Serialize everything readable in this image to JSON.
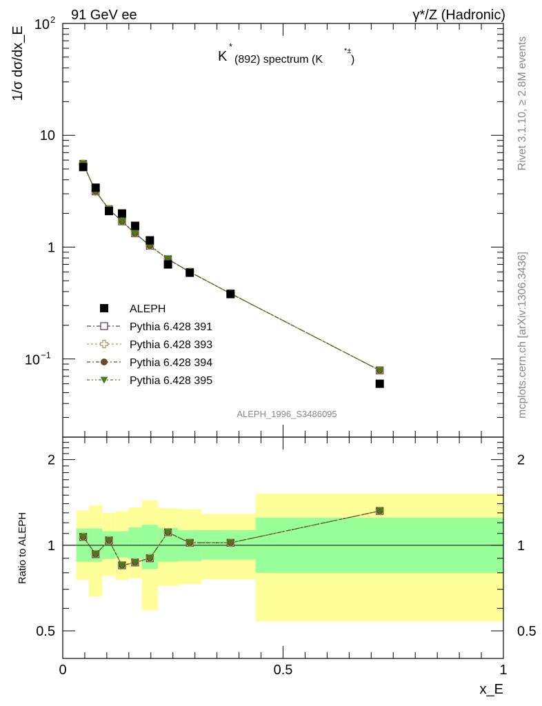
{
  "header": {
    "left": "91 GeV ee",
    "right": "γ*/Z (Hadronic)"
  },
  "side": {
    "rivet": "Rivet 3.1.10, ≥ 2.8M events",
    "mcplots": "mcplots.cern.ch [arXiv:1306.3436]"
  },
  "plot_title": {
    "K": "K",
    "star": "*",
    "rest": "(892) spectrum (K",
    "sup": "*±",
    "close": ")"
  },
  "watermark": "ALEPH_1996_S3486095",
  "chart_data": [
    {
      "type": "scatter",
      "yscale": "log",
      "ylabel": "1/σ dσ/dx_E",
      "xlim": [
        0,
        1
      ],
      "ylim": [
        0.02,
        100
      ],
      "yticks": [
        "10^2",
        "10",
        "1",
        "10^-1"
      ],
      "legend_position": "lower-left",
      "x": [
        0.0464,
        0.0746,
        0.1049,
        0.1345,
        0.1642,
        0.1977,
        0.2388,
        0.2883,
        0.3808,
        0.7194
      ],
      "x_bins": [
        [
          0.0309,
          0.0593
        ],
        [
          0.0593,
          0.0897
        ],
        [
          0.0897,
          0.12
        ],
        [
          0.12,
          0.149
        ],
        [
          0.149,
          0.1795
        ],
        [
          0.1795,
          0.2159
        ],
        [
          0.2159,
          0.2616
        ],
        [
          0.2616,
          0.3152
        ],
        [
          0.3152,
          0.4375
        ],
        [
          0.4375,
          1.0
        ]
      ],
      "series": [
        {
          "name": "ALEPH",
          "marker": "square-filled",
          "color": "#000000",
          "values": [
            5.2,
            3.4,
            2.1,
            2.0,
            1.55,
            1.15,
            0.7,
            0.59,
            0.38,
            0.06
          ]
        },
        {
          "name": "Pythia 6.428 391",
          "marker": "square-open",
          "color": "#6b3a5a",
          "values": [
            5.55,
            3.15,
            2.18,
            1.7,
            1.33,
            1.03,
            0.78,
            0.6,
            0.385,
            0.079
          ]
        },
        {
          "name": "Pythia 6.428 393",
          "marker": "cross-open",
          "color": "#a89a5a",
          "values": [
            5.55,
            3.15,
            2.18,
            1.7,
            1.33,
            1.03,
            0.78,
            0.6,
            0.385,
            0.079
          ]
        },
        {
          "name": "Pythia 6.428 394",
          "marker": "circle-filled",
          "color": "#6b4a2a",
          "values": [
            5.55,
            3.15,
            2.18,
            1.7,
            1.33,
            1.03,
            0.78,
            0.6,
            0.385,
            0.079
          ]
        },
        {
          "name": "Pythia 6.428 395",
          "marker": "triangle-down-filled",
          "color": "#4a7a1a",
          "values": [
            5.55,
            3.15,
            2.18,
            1.7,
            1.33,
            1.03,
            0.78,
            0.6,
            0.385,
            0.079
          ]
        }
      ]
    },
    {
      "type": "line",
      "yscale": "log",
      "xlabel": "x_E",
      "ylabel": "Ratio to ALEPH",
      "xlim": [
        0,
        1
      ],
      "ylim": [
        0.4,
        2.4
      ],
      "xticks": [
        "0",
        "0.5",
        "1"
      ],
      "yticks": [
        "2",
        "1",
        "0.5"
      ],
      "bands": {
        "inner_color": "#99ff99",
        "outer_color": "#ffff99",
        "inner": [
          [
            0.875,
            1.145
          ],
          [
            0.875,
            1.145
          ],
          [
            0.895,
            1.12
          ],
          [
            0.905,
            1.12
          ],
          [
            0.895,
            1.155
          ],
          [
            0.825,
            1.18
          ],
          [
            0.875,
            1.15
          ],
          [
            0.88,
            1.13
          ],
          [
            0.89,
            1.13
          ],
          [
            0.8,
            1.25
          ]
        ],
        "outer": [
          [
            0.755,
            1.325
          ],
          [
            0.66,
            1.38
          ],
          [
            0.78,
            1.3
          ],
          [
            0.755,
            1.32
          ],
          [
            0.765,
            1.36
          ],
          [
            0.59,
            1.44
          ],
          [
            0.72,
            1.35
          ],
          [
            0.73,
            1.34
          ],
          [
            0.76,
            1.29
          ],
          [
            0.54,
            1.52
          ]
        ]
      },
      "series": [
        {
          "name": "Pythia 6.428 391",
          "color": "#6b3a5a",
          "values": [
            1.07,
            0.93,
            1.04,
            0.85,
            0.87,
            0.9,
            1.11,
            1.02,
            1.02,
            1.32
          ]
        },
        {
          "name": "Pythia 6.428 393",
          "color": "#a89a5a",
          "values": [
            1.07,
            0.93,
            1.04,
            0.85,
            0.87,
            0.9,
            1.11,
            1.02,
            1.02,
            1.32
          ]
        },
        {
          "name": "Pythia 6.428 394",
          "color": "#6b4a2a",
          "values": [
            1.07,
            0.93,
            1.04,
            0.85,
            0.87,
            0.9,
            1.11,
            1.02,
            1.02,
            1.32
          ]
        },
        {
          "name": "Pythia 6.428 395",
          "color": "#4a7a1a",
          "values": [
            1.07,
            0.93,
            1.04,
            0.85,
            0.87,
            0.9,
            1.11,
            1.02,
            1.02,
            1.32
          ]
        }
      ]
    }
  ]
}
